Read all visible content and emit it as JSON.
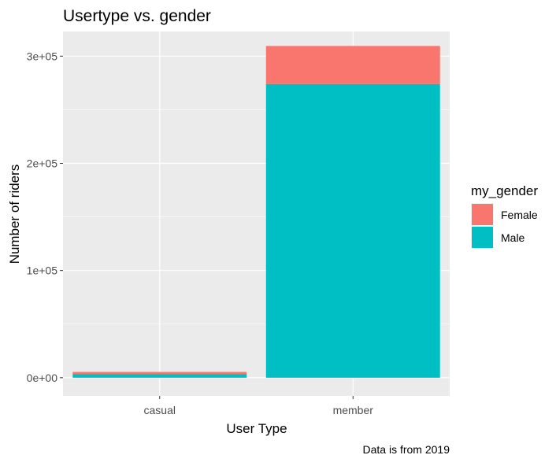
{
  "chart_data": {
    "type": "bar",
    "stacked": true,
    "title": "Usertype vs. gender",
    "xlabel": "User Type",
    "ylabel": "Number of riders",
    "caption": "Data is from 2019",
    "categories": [
      "casual",
      "member"
    ],
    "series": [
      {
        "name": "Male",
        "color": "#00BFC4",
        "values": [
          3500,
          274000
        ]
      },
      {
        "name": "Female",
        "color": "#F8766D",
        "values": [
          1900,
          35500
        ]
      }
    ],
    "ylim": [
      -17000,
      323000
    ],
    "yticks": [
      0,
      100000,
      200000,
      300000
    ],
    "ytick_labels": [
      "0e+00",
      "1e+05",
      "2e+05",
      "3e+05"
    ],
    "grid": true,
    "legend": {
      "title": "my_gender",
      "position": "right",
      "entries": [
        {
          "name": "Female",
          "color": "#F8766D"
        },
        {
          "name": "Male",
          "color": "#00BFC4"
        }
      ]
    },
    "panel_background": "#EBEBEB",
    "gridline_color": "#FFFFFF"
  }
}
